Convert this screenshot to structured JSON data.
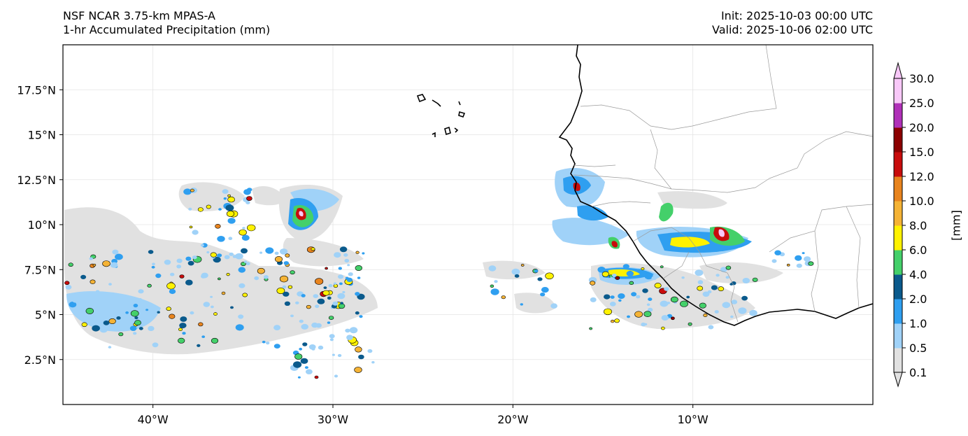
{
  "header": {
    "model": "NSF NCAR 3.75-km MPAS-A",
    "field": "1-hr Accumulated Precipitation (mm)",
    "init": "Init: 2025-10-03 00:00 UTC",
    "valid": "Valid: 2025-10-06 02:00 UTC"
  },
  "map": {
    "lon_range": [
      -45,
      0
    ],
    "lat_range": [
      0,
      20
    ],
    "x_ticks": [
      {
        "lon": -40,
        "label": "40°W"
      },
      {
        "lon": -30,
        "label": "30°W"
      },
      {
        "lon": -20,
        "label": "20°W"
      },
      {
        "lon": -10,
        "label": "10°W"
      }
    ],
    "y_ticks": [
      {
        "lat": 2.5,
        "label": "2.5°N"
      },
      {
        "lat": 5,
        "label": "5°N"
      },
      {
        "lat": 7.5,
        "label": "7.5°N"
      },
      {
        "lat": 10,
        "label": "10°N"
      },
      {
        "lat": 12.5,
        "label": "12.5°N"
      },
      {
        "lat": 15,
        "label": "15°N"
      },
      {
        "lat": 17.5,
        "label": "17.5°N"
      }
    ],
    "gridlines": true
  },
  "colorbar": {
    "unit_label": "[mm]",
    "levels": [
      "0.1",
      "0.5",
      "1.0",
      "2.0",
      "4.0",
      "6.0",
      "8.0",
      "10.0",
      "12.0",
      "15.0",
      "20.0",
      "25.0",
      "30.0"
    ],
    "colors": [
      "#e1e1e1",
      "#a0d2f8",
      "#2f9ff0",
      "#0a5a8c",
      "#44d06a",
      "#fff200",
      "#f5b335",
      "#e8841e",
      "#c80c0c",
      "#8c0000",
      "#b030b8",
      "#f8c8f8"
    ],
    "extend": "both"
  }
}
